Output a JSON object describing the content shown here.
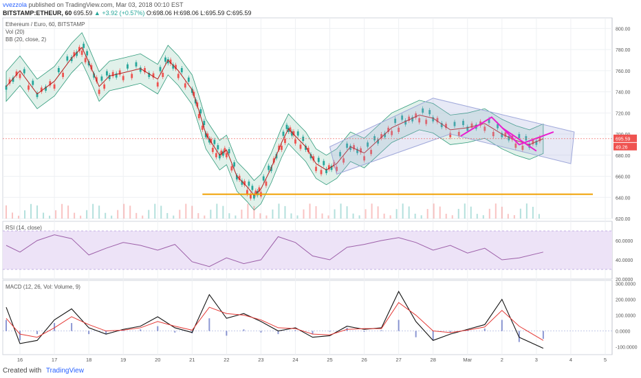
{
  "header": {
    "author": "vvezzola",
    "published_text": "published on TradingView.com, Mar 03, 2018 00:10 EST",
    "symbol": "BITSTAMP:ETHEUR, 60",
    "last": "695.59",
    "change": "▲ +3.92 (+0.57%)",
    "ohlc": "O:698.06 H:698.06 L:695.59 C:695.59"
  },
  "footer": {
    "created_with": "Created with",
    "brand": "TradingView"
  },
  "colors": {
    "up": "#26a69a",
    "down": "#ef5350",
    "bb_fill": "#c8e6d8",
    "bb_line": "#2e9a7a",
    "basis": "#b71c1c",
    "support": "#f0a000",
    "pattern": "#e91ecf",
    "channel": "#9fa8da",
    "rsi_band": "#ede3f7",
    "rsi_line": "#9c5fa8",
    "macd": "#111111",
    "signal": "#e53935",
    "hist": "#3f51b5"
  },
  "chart_data": [
    {
      "type": "line",
      "title": "Ethereum / Euro, 60, BITSTAMP",
      "indicators": [
        "Vol (20)",
        "BB (20, close, 2)"
      ],
      "x_ticks": [
        "16",
        "17",
        "18",
        "19",
        "20",
        "21",
        "22",
        "23",
        "24",
        "25",
        "26",
        "27",
        "28",
        "Mar",
        "2",
        "3",
        "4",
        "5"
      ],
      "y_ticks": [
        "800.00",
        "780.00",
        "760.00",
        "740.00",
        "720.00",
        "700.00",
        "680.00",
        "660.00",
        "640.00",
        "620.00"
      ],
      "ylim": [
        620,
        810
      ],
      "series": [
        {
          "x": [
            15.6,
            16.0,
            16.5,
            17.0,
            17.5,
            17.8,
            18.0,
            18.3,
            18.6,
            19.0,
            19.5,
            20.0,
            20.3,
            20.6,
            21.0,
            21.2,
            21.4,
            21.6,
            21.8,
            22.0,
            22.3,
            22.6,
            22.8,
            23.0,
            23.3,
            23.6,
            23.8,
            24.0,
            24.3,
            24.6,
            24.9,
            25.2,
            25.6,
            26.0,
            26.4,
            26.8,
            27.2,
            27.6,
            28.0,
            28.5,
            29.0,
            29.5,
            30.0,
            30.4,
            30.8,
            31.2
          ],
          "y": [
            745,
            760,
            738,
            750,
            772,
            782,
            768,
            745,
            755,
            758,
            762,
            752,
            770,
            760,
            742,
            722,
            700,
            690,
            680,
            685,
            660,
            650,
            642,
            648,
            668,
            692,
            705,
            698,
            688,
            672,
            666,
            672,
            688,
            682,
            694,
            706,
            712,
            718,
            715,
            704,
            706,
            710,
            700,
            694,
            690,
            695.59
          ]
        }
      ],
      "support_level": 643,
      "last_price_tag": "695.59",
      "volume_tag": "49.26"
    },
    {
      "type": "line",
      "title": "RSI (14, close)",
      "y_ticks": [
        "60.0000",
        "40.0000",
        "20.0000"
      ],
      "ylim": [
        20,
        80
      ],
      "bands": [
        70,
        30
      ],
      "series": [
        {
          "x": [
            15.6,
            16.0,
            16.5,
            17.0,
            17.5,
            18.0,
            18.5,
            19.0,
            19.5,
            20.0,
            20.5,
            21.0,
            21.5,
            22.0,
            22.5,
            23.0,
            23.5,
            24.0,
            24.5,
            25.0,
            25.5,
            26.0,
            26.5,
            27.0,
            27.5,
            28.0,
            28.5,
            29.0,
            29.5,
            30.0,
            30.5,
            31.2
          ],
          "y": [
            55,
            48,
            60,
            66,
            62,
            45,
            52,
            58,
            55,
            50,
            56,
            38,
            33,
            42,
            36,
            40,
            64,
            58,
            44,
            40,
            53,
            56,
            60,
            63,
            58,
            50,
            55,
            47,
            52,
            40,
            42,
            48
          ]
        }
      ]
    },
    {
      "type": "line",
      "title": "MACD (12, 26, Vol: Volume, 9)",
      "y_ticks": [
        "300.0000",
        "200.0000",
        "100.0000",
        "0.0000",
        "-100.0000"
      ],
      "ylim": [
        -150,
        320
      ],
      "series": [
        {
          "x": [
            15.6,
            16.0,
            16.5,
            17.0,
            17.5,
            18.0,
            18.5,
            19.0,
            19.5,
            20.0,
            20.5,
            21.0,
            21.5,
            22.0,
            22.5,
            23.0,
            23.5,
            24.0,
            24.5,
            25.0,
            25.5,
            26.0,
            26.5,
            27.0,
            27.5,
            28.0,
            28.5,
            29.0,
            29.5,
            30.0,
            30.5,
            31.2
          ],
          "y": [
            150,
            -80,
            -60,
            70,
            140,
            20,
            -20,
            10,
            30,
            90,
            20,
            -10,
            230,
            80,
            110,
            60,
            0,
            20,
            -40,
            -30,
            30,
            10,
            20,
            250,
            60,
            -60,
            -20,
            10,
            40,
            200,
            -40,
            -110
          ]
        },
        {
          "x": [
            15.6,
            16.0,
            16.5,
            17.0,
            17.5,
            18.0,
            18.5,
            19.0,
            19.5,
            20.0,
            20.5,
            21.0,
            21.5,
            22.0,
            22.5,
            23.0,
            23.5,
            24.0,
            24.5,
            25.0,
            25.5,
            26.0,
            26.5,
            27.0,
            27.5,
            28.0,
            28.5,
            29.0,
            29.5,
            30.0,
            30.5,
            31.2
          ],
          "y": [
            80,
            -20,
            -40,
            20,
            90,
            40,
            0,
            5,
            20,
            60,
            30,
            5,
            150,
            110,
            100,
            70,
            20,
            15,
            -20,
            -25,
            10,
            15,
            15,
            180,
            100,
            0,
            -10,
            5,
            25,
            130,
            30,
            -60
          ]
        }
      ]
    }
  ]
}
